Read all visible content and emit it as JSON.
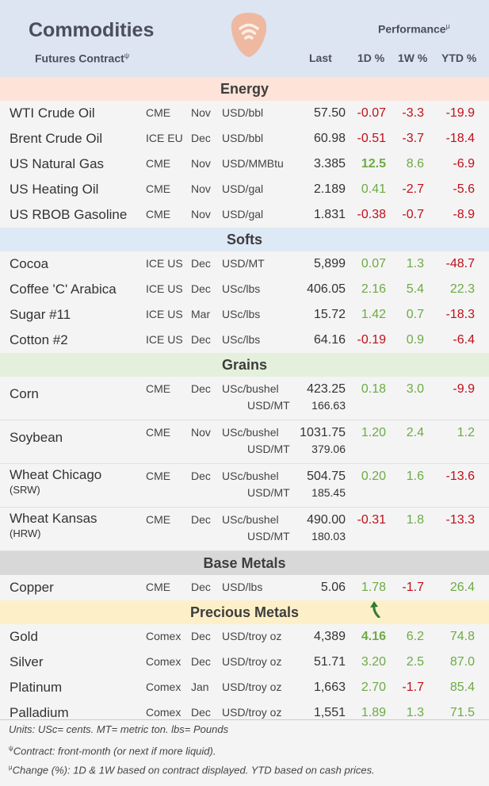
{
  "header": {
    "title": "Commodities",
    "subtitle": "Futures Contract",
    "subtitle_sup": "ψ",
    "performance": "Performance",
    "performance_sup": "μ",
    "cols": {
      "last": "Last",
      "d1": "1D %",
      "w1": "1W %",
      "ytd": "YTD %"
    }
  },
  "energy": {
    "label": "Energy",
    "rows": [
      {
        "name": "WTI Crude Oil",
        "exch": "CME",
        "mon": "Nov",
        "unit": "USD/bbl",
        "last": "57.50",
        "d1": "-0.07",
        "w1": "-3.3",
        "ytd": "-19.9"
      },
      {
        "name": "Brent Crude Oil",
        "exch": "ICE EU",
        "mon": "Dec",
        "unit": "USD/bbl",
        "last": "60.98",
        "d1": "-0.51",
        "w1": "-3.7",
        "ytd": "-18.4"
      },
      {
        "name": "US Natural Gas",
        "exch": "CME",
        "mon": "Nov",
        "unit": "USD/MMBtu",
        "last": "3.385",
        "d1": "12.5",
        "w1": "8.6",
        "ytd": "-6.9"
      },
      {
        "name": "US Heating Oil",
        "exch": "CME",
        "mon": "Nov",
        "unit": "USD/gal",
        "last": "2.189",
        "d1": "0.41",
        "w1": "-2.7",
        "ytd": "-5.6"
      },
      {
        "name": "US RBOB Gasoline",
        "exch": "CME",
        "mon": "Nov",
        "unit": "USD/gal",
        "last": "1.831",
        "d1": "-0.38",
        "w1": "-0.7",
        "ytd": "-8.9"
      }
    ]
  },
  "softs": {
    "label": "Softs",
    "rows": [
      {
        "name": "Cocoa",
        "exch": "ICE US",
        "mon": "Dec",
        "unit": "USD/MT",
        "last": "5,899",
        "d1": "0.07",
        "w1": "1.3",
        "ytd": "-48.7"
      },
      {
        "name": "Coffee 'C' Arabica",
        "exch": "ICE US",
        "mon": "Dec",
        "unit": "USc/lbs",
        "last": "406.05",
        "d1": "2.16",
        "w1": "5.4",
        "ytd": "22.3"
      },
      {
        "name": "Sugar #11",
        "exch": "ICE US",
        "mon": "Mar",
        "unit": "USc/lbs",
        "last": "15.72",
        "d1": "1.42",
        "w1": "0.7",
        "ytd": "-18.3"
      },
      {
        "name": "Cotton #2",
        "exch": "ICE US",
        "mon": "Dec",
        "unit": "USc/lbs",
        "last": "64.16",
        "d1": "-0.19",
        "w1": "0.9",
        "ytd": "-6.4"
      }
    ]
  },
  "grains": {
    "label": "Grains",
    "rows": [
      {
        "name": "Corn",
        "sub": "",
        "exch": "CME",
        "mon": "Dec",
        "unit": "USc/bushel",
        "last": "423.25",
        "unit2": "USD/MT",
        "last2": "166.63",
        "d1": "0.18",
        "w1": "3.0",
        "ytd": "-9.9"
      },
      {
        "name": "Soybean",
        "sub": "",
        "exch": "CME",
        "mon": "Nov",
        "unit": "USc/bushel",
        "last": "1031.75",
        "unit2": "USD/MT",
        "last2": "379.06",
        "d1": "1.20",
        "w1": "2.4",
        "ytd": "1.2"
      },
      {
        "name": "Wheat Chicago",
        "sub": "(SRW)",
        "exch": "CME",
        "mon": "Dec",
        "unit": "USc/bushel",
        "last": "504.75",
        "unit2": "USD/MT",
        "last2": "185.45",
        "d1": "0.20",
        "w1": "1.6",
        "ytd": "-13.6"
      },
      {
        "name": "Wheat Kansas",
        "sub": "(HRW)",
        "exch": "CME",
        "mon": "Dec",
        "unit": "USc/bushel",
        "last": "490.00",
        "unit2": "USD/MT",
        "last2": "180.03",
        "d1": "-0.31",
        "w1": "1.8",
        "ytd": "-13.3"
      }
    ]
  },
  "base": {
    "label": "Base Metals",
    "rows": [
      {
        "name": "Copper",
        "exch": "CME",
        "mon": "Dec",
        "unit": "USD/lbs",
        "last": "5.06",
        "d1": "1.78",
        "w1": "-1.7",
        "ytd": "26.4"
      }
    ]
  },
  "precious": {
    "label": "Precious Metals",
    "rows": [
      {
        "name": "Gold",
        "exch": "Comex",
        "mon": "Dec",
        "unit": "USD/troy oz",
        "last": "4,389",
        "d1": "4.16",
        "w1": "6.2",
        "ytd": "74.8"
      },
      {
        "name": "Silver",
        "exch": "Comex",
        "mon": "Dec",
        "unit": "USD/troy oz",
        "last": "51.71",
        "d1": "3.20",
        "w1": "2.5",
        "ytd": "87.0"
      },
      {
        "name": "Platinum",
        "exch": "Comex",
        "mon": "Jan",
        "unit": "USD/troy oz",
        "last": "1,663",
        "d1": "2.70",
        "w1": "-1.7",
        "ytd": "85.4"
      },
      {
        "name": "Palladium",
        "exch": "Comex",
        "mon": "Dec",
        "unit": "USD/troy oz",
        "last": "1,551",
        "d1": "1.89",
        "w1": "1.3",
        "ytd": "71.5"
      }
    ]
  },
  "footer": {
    "units": "Units: USc= cents.  MT= metric ton.  lbs= Pounds",
    "contract_sup": "ψ",
    "contract": "Contract: front-month (or next if more liquid).",
    "change_sup": "μ",
    "change": "Change (%): 1D & 1W based on contract displayed. YTD based on cash prices."
  },
  "colors": {
    "positive": "#6cab43",
    "negative": "#c0101a",
    "logo": "#eeb9a0"
  },
  "icons": {
    "logo": "signal-logo-icon",
    "arrow": "green-up-arrow-icon"
  }
}
